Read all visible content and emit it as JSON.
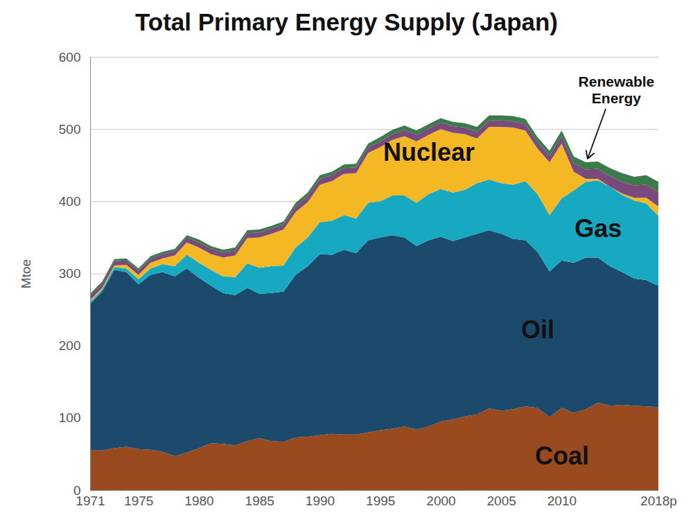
{
  "chart_data": {
    "type": "area",
    "stacked": true,
    "title": "Total Primary Energy Supply (Japan)",
    "y_label": "Mtoe",
    "grid": true,
    "x": [
      1971,
      1972,
      1973,
      1974,
      1975,
      1976,
      1977,
      1978,
      1979,
      1980,
      1981,
      1982,
      1983,
      1984,
      1985,
      1986,
      1987,
      1988,
      1989,
      1990,
      1991,
      1992,
      1993,
      1994,
      1995,
      1996,
      1997,
      1998,
      1999,
      2000,
      2001,
      2002,
      2003,
      2004,
      2005,
      2006,
      2007,
      2008,
      2009,
      2010,
      2011,
      2012,
      2013,
      2014,
      2015,
      2016,
      2017,
      2018
    ],
    "xlim": [
      1971,
      2018
    ],
    "xticks": [
      1971,
      1975,
      1980,
      1985,
      1990,
      1995,
      2000,
      2005,
      2010,
      {
        "value": 2018,
        "label": "2018p"
      }
    ],
    "ylim": [
      0,
      600
    ],
    "yticks": [
      0,
      100,
      200,
      300,
      400,
      500,
      600
    ],
    "series": [
      {
        "name": "Coal",
        "color": "#9a4a1f",
        "values": [
          55,
          55,
          58,
          60,
          57,
          56,
          53,
          47,
          52,
          58,
          65,
          64,
          62,
          68,
          72,
          68,
          67,
          73,
          74,
          76,
          78,
          77,
          77,
          80,
          83,
          85,
          88,
          84,
          88,
          95,
          98,
          102,
          105,
          113,
          110,
          112,
          116,
          114,
          101,
          114,
          107,
          112,
          121,
          117,
          118,
          117,
          116,
          115
        ]
      },
      {
        "name": "Oil",
        "color": "#1c4a6c",
        "values": [
          203,
          220,
          247,
          242,
          228,
          242,
          249,
          249,
          255,
          236,
          218,
          209,
          208,
          212,
          200,
          205,
          208,
          225,
          236,
          251,
          248,
          256,
          251,
          266,
          267,
          268,
          262,
          254,
          258,
          256,
          247,
          248,
          250,
          247,
          245,
          236,
          230,
          216,
          202,
          204,
          208,
          210,
          201,
          193,
          184,
          176,
          175,
          168
        ]
      },
      {
        "name": "Gas",
        "color": "#17a8c2",
        "values": [
          3,
          3,
          4,
          5,
          7,
          9,
          11,
          14,
          19,
          21,
          22,
          23,
          25,
          34,
          36,
          37,
          36,
          38,
          40,
          44,
          47,
          48,
          48,
          52,
          50,
          55,
          58,
          60,
          64,
          66,
          67,
          66,
          70,
          70,
          70,
          75,
          82,
          80,
          78,
          86,
          100,
          105,
          107,
          110,
          107,
          108,
          106,
          97
        ]
      },
      {
        "name": "Nuclear",
        "color": "#f4b824",
        "values": [
          2,
          2,
          2,
          5,
          6,
          8,
          8,
          15,
          17,
          21,
          22,
          26,
          30,
          35,
          42,
          45,
          50,
          49,
          49,
          52,
          55,
          57,
          63,
          69,
          75,
          77,
          82,
          85,
          82,
          83,
          83,
          77,
          62,
          73,
          78,
          79,
          70,
          63,
          73,
          76,
          26,
          4,
          2,
          0,
          2,
          4,
          8,
          13
        ]
      },
      {
        "name": null,
        "color": "#7a4a7c",
        "values": [
          6,
          6,
          6,
          6,
          6,
          6,
          6,
          6,
          7,
          7,
          7,
          7,
          7,
          7,
          7,
          7,
          7,
          8,
          8,
          8,
          8,
          8,
          8,
          8,
          8,
          8,
          9,
          9,
          9,
          9,
          9,
          9,
          9,
          9,
          9,
          9,
          9,
          9,
          9,
          10,
          12,
          13,
          14,
          15,
          16,
          17,
          18,
          20
        ]
      },
      {
        "name": "Renewable Energy",
        "color": "#3b7a4b",
        "values": [
          3,
          3,
          3,
          3,
          3,
          3,
          3,
          3,
          3,
          4,
          4,
          4,
          4,
          4,
          4,
          4,
          4,
          5,
          5,
          5,
          5,
          5,
          5,
          5,
          6,
          6,
          6,
          6,
          6,
          6,
          6,
          6,
          7,
          7,
          7,
          7,
          7,
          7,
          7,
          8,
          9,
          10,
          10,
          11,
          12,
          12,
          13,
          14
        ]
      }
    ],
    "annotations": [
      {
        "text": "Nuclear",
        "x": 1999,
        "y": 468
      },
      {
        "text": "Gas",
        "x": 2013,
        "y": 362
      },
      {
        "text": "Oil",
        "x": 2008,
        "y": 222
      },
      {
        "text": "Coal",
        "x": 2010,
        "y": 47
      },
      {
        "text": "Renewable Energy",
        "x": 2014.5,
        "y": 555
      }
    ]
  }
}
